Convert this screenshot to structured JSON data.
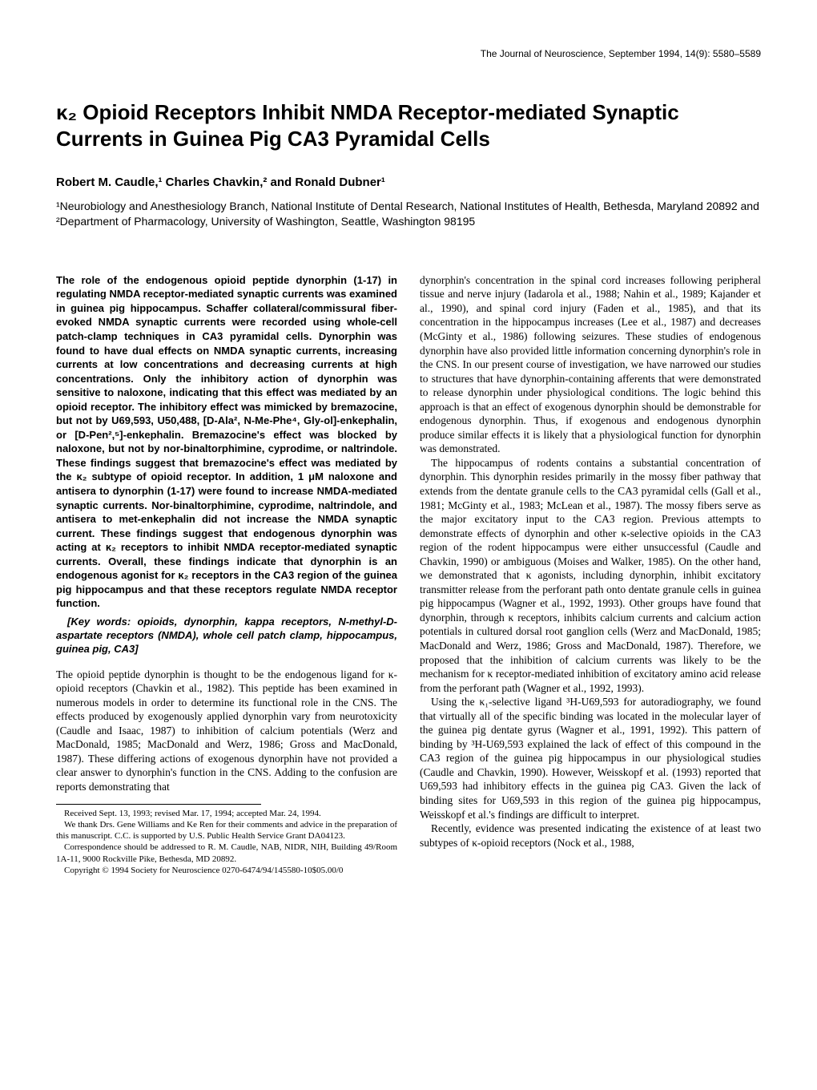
{
  "journal_header": "The Journal of Neuroscience, September 1994, 14(9): 5580–5589",
  "title": "κ₂ Opioid Receptors Inhibit NMDA Receptor-mediated Synaptic Currents in Guinea Pig CA3 Pyramidal Cells",
  "authors": "Robert M. Caudle,¹ Charles Chavkin,² and Ronald Dubner¹",
  "affiliations": "¹Neurobiology and Anesthesiology Branch, National Institute of Dental Research, National Institutes of Health, Bethesda, Maryland 20892 and ²Department of Pharmacology, University of Washington, Seattle, Washington 98195",
  "abstract": "The role of the endogenous opioid peptide dynorphin (1-17) in regulating NMDA receptor-mediated synaptic currents was examined in guinea pig hippocampus. Schaffer collateral/commissural fiber-evoked NMDA synaptic currents were recorded using whole-cell patch-clamp techniques in CA3 pyramidal cells. Dynorphin was found to have dual effects on NMDA synaptic currents, increasing currents at low concentrations and decreasing currents at high concentrations. Only the inhibitory action of dynorphin was sensitive to naloxone, indicating that this effect was mediated by an opioid receptor. The inhibitory effect was mimicked by bremazocine, but not by U69,593, U50,488, [D-Ala², N-Me-Phe⁴, Gly-ol]-enkephalin, or [D-Pen²,⁵]-enkephalin. Bremazocine's effect was blocked by naloxone, but not by nor-binaltorphimine, cyprodime, or naltrindole. These findings suggest that bremazocine's effect was mediated by the κ₂ subtype of opioid receptor. In addition, 1 μM naloxone and antisera to dynorphin (1-17) were found to increase NMDA-mediated synaptic currents. Nor-binaltorphimine, cyprodime, naltrindole, and antisera to met-enkephalin did not increase the NMDA synaptic current. These findings suggest that endogenous dynorphin was acting at κ₂ receptors to inhibit NMDA receptor-mediated synaptic currents. Overall, these findings indicate that dynorphin is an endogenous agonist for κ₂ receptors in the CA3 region of the guinea pig hippocampus and that these receptors regulate NMDA receptor function.",
  "keywords": "[Key words: opioids, dynorphin, kappa receptors, N-methyl-D-aspartate receptors (NMDA), whole cell patch clamp, hippocampus, guinea pig, CA3]",
  "intro_p1": "The opioid peptide dynorphin is thought to be the endogenous ligand for κ-opioid receptors (Chavkin et al., 1982). This peptide has been examined in numerous models in order to determine its functional role in the CNS. The effects produced by exogenously applied dynorphin vary from neurotoxicity (Caudle and Isaac, 1987) to inhibition of calcium potentials (Werz and MacDonald, 1985; MacDonald and Werz, 1986; Gross and MacDonald, 1987). These differing actions of exogenous dynorphin have not provided a clear answer to dynorphin's function in the CNS. Adding to the confusion are reports demonstrating that",
  "col2_p1": "dynorphin's concentration in the spinal cord increases following peripheral tissue and nerve injury (Iadarola et al., 1988; Nahin et al., 1989; Kajander et al., 1990), and spinal cord injury (Faden et al., 1985), and that its concentration in the hippocampus increases (Lee et al., 1987) and decreases (McGinty et al., 1986) following seizures. These studies of endogenous dynorphin have also provided little information concerning dynorphin's role in the CNS. In our present course of investigation, we have narrowed our studies to structures that have dynorphin-containing afferents that were demonstrated to release dynorphin under physiological conditions. The logic behind this approach is that an effect of exogenous dynorphin should be demonstrable for endogenous dynorphin. Thus, if exogenous and endogenous dynorphin produce similar effects it is likely that a physiological function for dynorphin was demonstrated.",
  "col2_p2": "The hippocampus of rodents contains a substantial concentration of dynorphin. This dynorphin resides primarily in the mossy fiber pathway that extends from the dentate granule cells to the CA3 pyramidal cells (Gall et al., 1981; McGinty et al., 1983; McLean et al., 1987). The mossy fibers serve as the major excitatory input to the CA3 region. Previous attempts to demonstrate effects of dynorphin and other κ-selective opioids in the CA3 region of the rodent hippocampus were either unsuccessful (Caudle and Chavkin, 1990) or ambiguous (Moises and Walker, 1985). On the other hand, we demonstrated that κ agonists, including dynorphin, inhibit excitatory transmitter release from the perforant path onto dentate granule cells in guinea pig hippocampus (Wagner et al., 1992, 1993). Other groups have found that dynorphin, through κ receptors, inhibits calcium currents and calcium action potentials in cultured dorsal root ganglion cells (Werz and MacDonald, 1985; MacDonald and Werz, 1986; Gross and MacDonald, 1987). Therefore, we proposed that the inhibition of calcium currents was likely to be the mechanism for κ receptor-mediated inhibition of excitatory amino acid release from the perforant path (Wagner et al., 1992, 1993).",
  "col2_p3": "Using the κ₁-selective ligand ³H-U69,593 for autoradiography, we found that virtually all of the specific binding was located in the molecular layer of the guinea pig dentate gyrus (Wagner et al., 1991, 1992). This pattern of binding by ³H-U69,593 explained the lack of effect of this compound in the CA3 region of the guinea pig hippocampus in our physiological studies (Caudle and Chavkin, 1990). However, Weisskopf et al. (1993) reported that U69,593 had inhibitory effects in the guinea pig CA3. Given the lack of binding sites for U69,593 in this region of the guinea pig hippocampus, Weisskopf et al.'s findings are difficult to interpret.",
  "col2_p4": "Recently, evidence was presented indicating the existence of at least two subtypes of κ-opioid receptors (Nock et al., 1988,",
  "footnotes": {
    "received": "Received Sept. 13, 1993; revised Mar. 17, 1994; accepted Mar. 24, 1994.",
    "thanks": "We thank Drs. Gene Williams and Ke Ren for their comments and advice in the preparation of this manuscript. C.C. is supported by U.S. Public Health Service Grant DA04123.",
    "correspondence": "Correspondence should be addressed to R. M. Caudle, NAB, NIDR, NIH, Building 49/Room 1A-11, 9000 Rockville Pike, Bethesda, MD 20892.",
    "copyright": "Copyright © 1994 Society for Neuroscience 0270-6474/94/145580-10$05.00/0"
  }
}
